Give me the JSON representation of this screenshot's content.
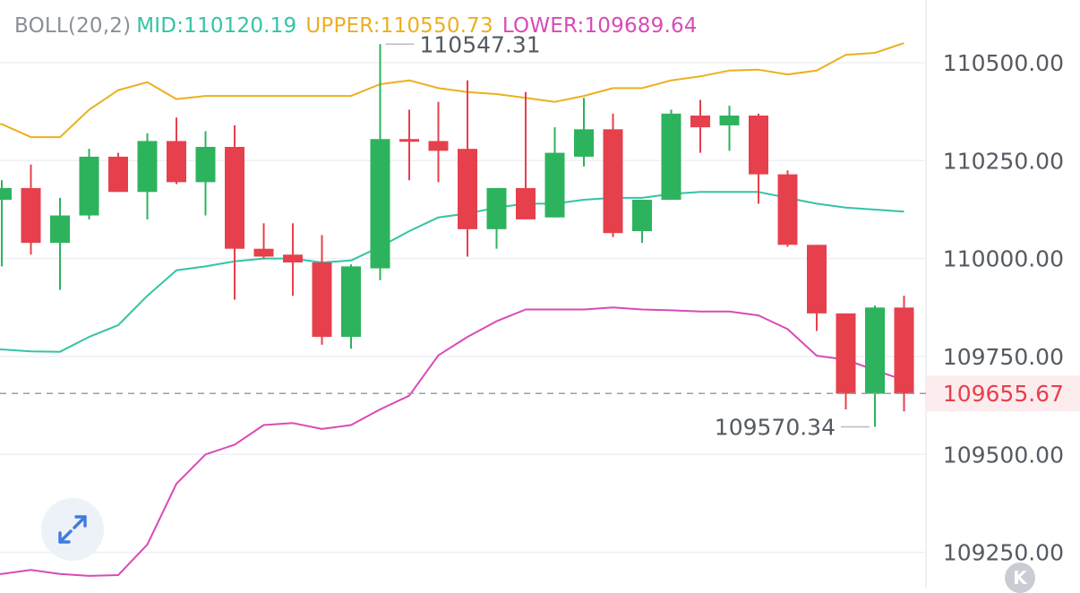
{
  "indicator": {
    "name": "BOLL(20,2)",
    "mid": "MID:110120.19",
    "upper": "UPPER:110550.73",
    "lower": "LOWER:109689.64"
  },
  "colors": {
    "up": "#2db35d",
    "down": "#e6404d",
    "mid": "#33c4a5",
    "upper": "#ecb01f",
    "lower": "#d94ab6",
    "axis_text": "#555a62",
    "current_price": "#e6404d",
    "grid": "#eef0f3"
  },
  "current_price_label": "109655.67",
  "badge": "K",
  "chart_data": {
    "type": "candlestick",
    "ylim": [
      109160,
      110660
    ],
    "yticks": [
      "110500.00",
      "110250.00",
      "110000.00",
      "109750.00",
      "109500.00",
      "109250.00"
    ],
    "ytick_values": [
      110500,
      110250,
      110000,
      109750,
      109500,
      109250
    ],
    "current_price": 109655.67,
    "annotations": [
      {
        "text": "110547.31",
        "value": 110547.31,
        "candle": 13
      },
      {
        "text": "109570.34",
        "value": 109570.34,
        "candle": 30
      }
    ],
    "candles": [
      {
        "o": 110150,
        "c": 110180,
        "h": 110200,
        "l": 109980
      },
      {
        "o": 110180,
        "c": 110040,
        "h": 110240,
        "l": 110010
      },
      {
        "o": 110040,
        "c": 110110,
        "h": 110155,
        "l": 109920
      },
      {
        "o": 110110,
        "c": 110260,
        "h": 110280,
        "l": 110100
      },
      {
        "o": 110260,
        "c": 110170,
        "h": 110270,
        "l": 110170
      },
      {
        "o": 110170,
        "c": 110300,
        "h": 110320,
        "l": 110100
      },
      {
        "o": 110300,
        "c": 110195,
        "h": 110360,
        "l": 110190
      },
      {
        "o": 110195,
        "c": 110285,
        "h": 110325,
        "l": 110110
      },
      {
        "o": 110285,
        "c": 110025,
        "h": 110340,
        "l": 109895
      },
      {
        "o": 110025,
        "c": 110005,
        "h": 110090,
        "l": 110000
      },
      {
        "o": 110010,
        "c": 109990,
        "h": 110090,
        "l": 109905
      },
      {
        "o": 109990,
        "c": 109800,
        "h": 110060,
        "l": 109780
      },
      {
        "o": 109800,
        "c": 109980,
        "h": 109985,
        "l": 109770
      },
      {
        "o": 109975,
        "c": 110305,
        "h": 110547.31,
        "l": 109945
      },
      {
        "o": 110305,
        "c": 110300,
        "h": 110380,
        "l": 110200
      },
      {
        "o": 110300,
        "c": 110275,
        "h": 110400,
        "l": 110195
      },
      {
        "o": 110280,
        "c": 110075,
        "h": 110455,
        "l": 110005
      },
      {
        "o": 110075,
        "c": 110180,
        "h": 110180,
        "l": 110025
      },
      {
        "o": 110180,
        "c": 110100,
        "h": 110425,
        "l": 110100
      },
      {
        "o": 110105,
        "c": 110270,
        "h": 110335,
        "l": 110105
      },
      {
        "o": 110260,
        "c": 110330,
        "h": 110410,
        "l": 110235
      },
      {
        "o": 110330,
        "c": 110065,
        "h": 110370,
        "l": 110055
      },
      {
        "o": 110070,
        "c": 110150,
        "h": 110150,
        "l": 110040
      },
      {
        "o": 110150,
        "c": 110370,
        "h": 110380,
        "l": 110150
      },
      {
        "o": 110365,
        "c": 110335,
        "h": 110405,
        "l": 110270
      },
      {
        "o": 110340,
        "c": 110365,
        "h": 110390,
        "l": 110275
      },
      {
        "o": 110365,
        "c": 110215,
        "h": 110370,
        "l": 110140
      },
      {
        "o": 110215,
        "c": 110035,
        "h": 110225,
        "l": 110030
      },
      {
        "o": 110035,
        "c": 109860,
        "h": 110035,
        "l": 109815
      },
      {
        "o": 109860,
        "c": 109655,
        "h": 109860,
        "l": 109615
      },
      {
        "o": 109655,
        "c": 109875,
        "h": 109880,
        "l": 109570.34
      },
      {
        "o": 109875,
        "c": 109655,
        "h": 109905,
        "l": 109610
      }
    ],
    "series": [
      {
        "name": "MID",
        "values": [
          109768,
          109763,
          109762,
          109800,
          109830,
          109905,
          109970,
          109980,
          109993,
          110000,
          110000,
          109990,
          109995,
          110030,
          110070,
          110105,
          110115,
          110130,
          110140,
          110140,
          110150,
          110155,
          110155,
          110165,
          110170,
          110170,
          110170,
          110155,
          110140,
          110130,
          110125,
          110120
        ]
      },
      {
        "name": "UPPER",
        "values": [
          110343,
          110310,
          110310,
          110380,
          110430,
          110450,
          110407,
          110415,
          110415,
          110415,
          110415,
          110415,
          110415,
          110445,
          110455,
          110435,
          110425,
          110420,
          110410,
          110400,
          110415,
          110435,
          110435,
          110455,
          110465,
          110480,
          110482,
          110470,
          110480,
          110520,
          110525,
          110550
        ]
      },
      {
        "name": "LOWER",
        "values": [
          109195,
          109205,
          109195,
          109190,
          109192,
          109270,
          109425,
          109500,
          109525,
          109575,
          109580,
          109565,
          109575,
          109615,
          109650,
          109753,
          109800,
          109840,
          109870,
          109870,
          109870,
          109875,
          109870,
          109868,
          109865,
          109865,
          109855,
          109820,
          109752,
          109742,
          109715,
          109689.64
        ]
      }
    ]
  }
}
